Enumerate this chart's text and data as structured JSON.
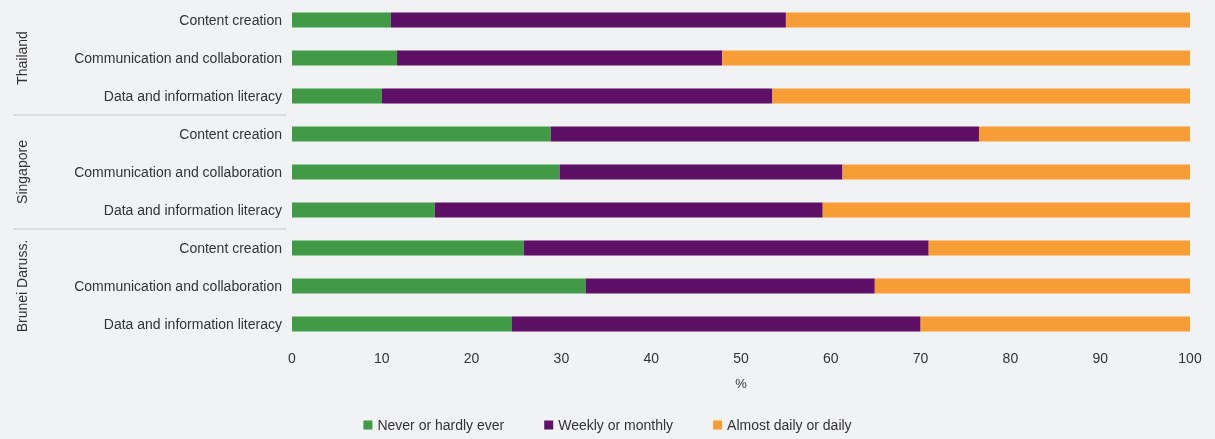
{
  "chart_data": {
    "type": "bar",
    "orientation": "horizontal",
    "stacked": true,
    "xlabel": "%",
    "categories": [
      "Content creation",
      "Communication and collaboration",
      "Data and information literacy",
      "Content creation",
      "Communication and collaboration",
      "Data and information literacy",
      "Content creation",
      "Communication and collaboration",
      "Data and information literacy"
    ],
    "series": [
      {
        "name": "Never or hardly ever",
        "color": "#439a46",
        "values": [
          11.0,
          11.7,
          10.0,
          28.8,
          29.8,
          15.9,
          25.8,
          32.7,
          24.5
        ]
      },
      {
        "name": "Weekly or monthly",
        "color": "#5e0f66",
        "values": [
          44.0,
          36.2,
          43.5,
          47.7,
          31.5,
          43.2,
          45.1,
          32.2,
          45.5
        ]
      },
      {
        "name": "Almost daily or daily",
        "color": "#f79d36",
        "values": [
          45.0,
          52.1,
          46.5,
          23.5,
          38.7,
          40.9,
          29.1,
          35.1,
          30.0
        ]
      }
    ],
    "xlim": [
      0,
      100
    ],
    "xticks": [
      0,
      10,
      20,
      30,
      40,
      50,
      60,
      70,
      80,
      90,
      100
    ],
    "annotations": [
      "Thailand",
      "Singapore",
      "Brunei Daruss."
    ],
    "grid": false,
    "legend": "bottom"
  }
}
